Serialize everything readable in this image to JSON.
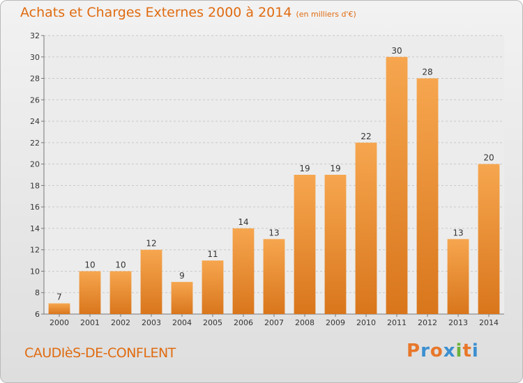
{
  "header": {
    "title": "Achats et Charges Externes 2000 à 2014",
    "unit": "(en milliers d'€)"
  },
  "footer": {
    "commune": "CAUDIèS-DE-CONFLENT",
    "logo_letters": [
      "P",
      "r",
      "o",
      "x",
      "i",
      "t",
      "i"
    ],
    "logo_colors": [
      "#e8772a",
      "#3b8fd0",
      "#e8772a",
      "#3b8fd0",
      "#6bb23c",
      "#e8772a",
      "#3b8fd0"
    ]
  },
  "colors": {
    "bar": "#f09a3e",
    "bar_dark": "#d9761c",
    "text": "#333333",
    "grid": "#c8c8c8"
  },
  "chart_data": {
    "type": "bar",
    "title": "Achats et Charges Externes 2000 à 2014",
    "categories": [
      "2000",
      "2001",
      "2002",
      "2003",
      "2004",
      "2005",
      "2006",
      "2007",
      "2008",
      "2009",
      "2010",
      "2011",
      "2012",
      "2013",
      "2014"
    ],
    "values": [
      7,
      10,
      10,
      12,
      9,
      11,
      14,
      13,
      19,
      19,
      22,
      30,
      28,
      13,
      20
    ],
    "xlabel": "",
    "ylabel": "",
    "ylim": [
      6,
      32
    ],
    "yticks": [
      6,
      8,
      10,
      12,
      14,
      16,
      18,
      20,
      22,
      24,
      26,
      28,
      30,
      32
    ],
    "grid": true
  }
}
